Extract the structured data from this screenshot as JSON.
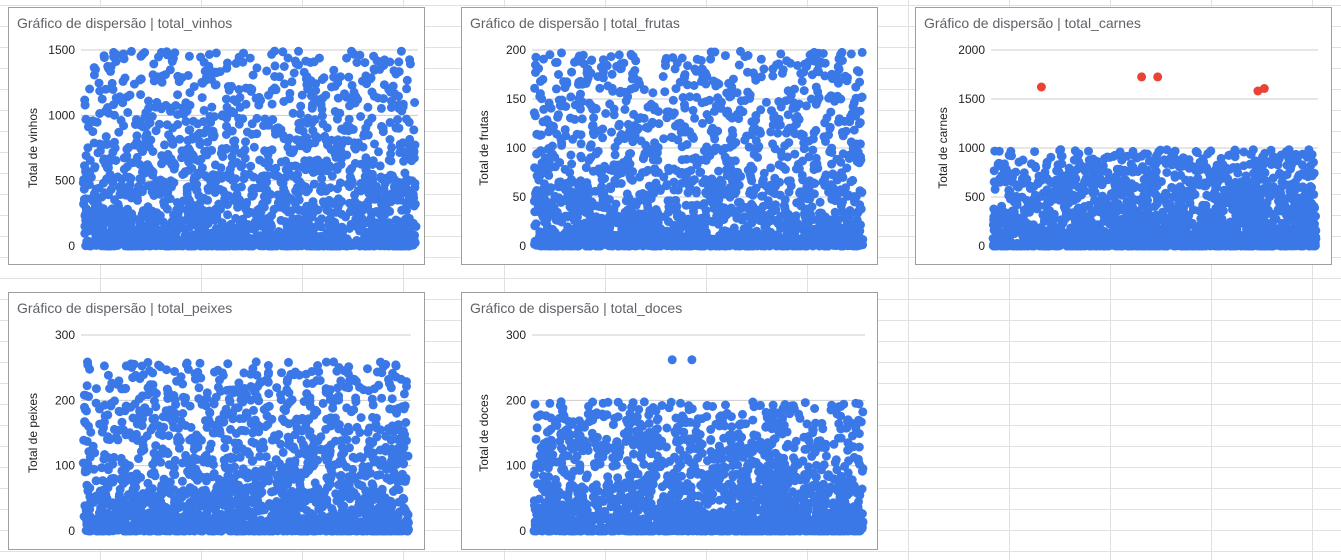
{
  "colors": {
    "point": "#3b78e7",
    "outlier": "#ea4335"
  },
  "chart_data": [
    {
      "id": "vinhos",
      "type": "scatter",
      "title": "Gráfico de dispersão | total_vinhos",
      "ylabel": "Total de vinhos",
      "ylim": [
        0,
        1500
      ],
      "yticks": [
        "0",
        "500",
        "1000",
        "1500"
      ],
      "n_points": 2000,
      "max_value": 1493,
      "outliers": []
    },
    {
      "id": "frutas",
      "type": "scatter",
      "title": "Gráfico de dispersão | total_frutas",
      "ylabel": "Total de frutas",
      "ylim": [
        0,
        200
      ],
      "yticks": [
        "0",
        "50",
        "100",
        "150",
        "200"
      ],
      "n_points": 2000,
      "max_value": 199,
      "outliers": []
    },
    {
      "id": "carnes",
      "type": "scatter",
      "title": "Gráfico de dispersão | total_carnes",
      "ylabel": "Total de carnes",
      "ylim": [
        0,
        2000
      ],
      "yticks": [
        "0",
        "500",
        "1000",
        "1500",
        "2000"
      ],
      "n_points": 2000,
      "max_value": 984,
      "outliers": [
        {
          "x": 0.15,
          "y": 1622
        },
        {
          "x": 0.46,
          "y": 1725
        },
        {
          "x": 0.51,
          "y": 1725
        },
        {
          "x": 0.82,
          "y": 1582
        },
        {
          "x": 0.84,
          "y": 1607
        }
      ]
    },
    {
      "id": "peixes",
      "type": "scatter",
      "title": "Gráfico de dispersão | total_peixes",
      "ylabel": "Total de peixes",
      "ylim": [
        0,
        300
      ],
      "yticks": [
        "0",
        "100",
        "200",
        "300"
      ],
      "n_points": 2000,
      "max_value": 259,
      "outliers": []
    },
    {
      "id": "doces",
      "type": "scatter",
      "title": "Gráfico de dispersão | total_doces",
      "ylabel": "Total de doces",
      "ylim": [
        0,
        300
      ],
      "yticks": [
        "0",
        "100",
        "200",
        "300"
      ],
      "n_points": 2000,
      "max_value": 198,
      "outliers": [
        {
          "x": 0.42,
          "y": 262
        },
        {
          "x": 0.48,
          "y": 262
        }
      ]
    }
  ]
}
